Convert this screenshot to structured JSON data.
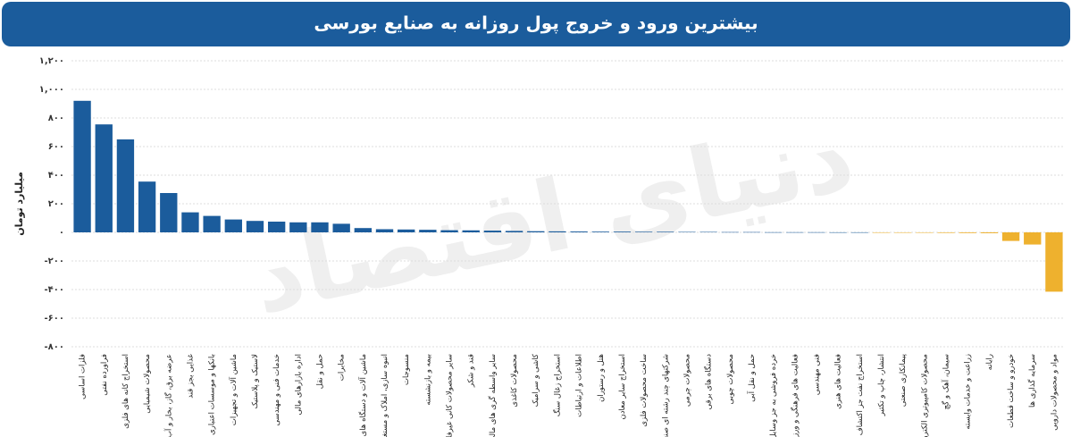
{
  "chart_data": {
    "type": "bar",
    "title": "بیشترین ورود و خروج پول روزانه به صنایع بورسی",
    "y_label": "میلیارد تومان",
    "watermark": "دنیای اقتصاد",
    "categories": [
      "فلزات اساسی",
      "فراورده نفتی",
      "استخراج کانه های فلزی",
      "محصولات شیمیایی",
      "عرضه برق، گاز، بخار و آب گرم",
      "غذایی بجز قند",
      "بانکها و موسسات اعتباری",
      "ماشین آلات و تجهیزات",
      "لاستیک و پلاستیک",
      "خدمات فنی و مهندسی",
      "اداره بازارهای مالی",
      "حمل و نقل",
      "مخابرات",
      "ماشین آلات و دستگاه های برقی",
      "انبوه سازی، املاک و مستغلات",
      "منسوجات",
      "بیمه و بازنشسته",
      "سایر محصولات کانی غیرفلزی",
      "قند و شکر",
      "سایر واسطه گری های مالی",
      "محصولات کاغذی",
      "کاشی و سرامیک",
      "استخراج زغال سنگ",
      "اطلاعات و ارتباطات",
      "هتل و رستوران",
      "استخراج سایر معادن",
      "ساخت محصولات فلزی",
      "شرکتهای چند رشته ای صنعتی",
      "محصولات چرمی",
      "دستگاه های برقی",
      "محصولات چوبی",
      "حمل و نقل آبی",
      "خرده فروشی به جز وسایل نقلیه",
      "فعالیت های فرهنگی و ورزشی",
      "فنی مهندسی",
      "فعالیت های هنری",
      "استخراج نفت جز اکتشاف",
      "انتشار، چاپ و تکثیر",
      "پیمانکاری صنعتی",
      "محصولات کامپیوتری الکترونیکی",
      "سیمان، آهک و گچ",
      "زراعت و خدمات وابسته",
      "رایانه",
      "خودرو و ساخت قطعات",
      "سرمایه گذاری ها",
      "مواد و محصولات دارویی"
    ],
    "values": [
      920,
      755,
      650,
      355,
      275,
      140,
      115,
      90,
      80,
      75,
      70,
      70,
      60,
      30,
      22,
      20,
      18,
      15,
      14,
      12,
      10,
      8,
      7,
      6,
      5,
      5,
      4,
      4,
      3,
      3,
      2,
      2,
      1,
      1,
      1,
      0.5,
      0.5,
      -1,
      -2,
      -3,
      -4,
      -5,
      -6,
      -60,
      -85,
      -415
    ],
    "colors": {
      "positive": "#1b5c9c",
      "negative": "#eeb12e"
    },
    "ylim": [
      -800,
      1200
    ],
    "yticks": [
      {
        "value": 1200,
        "label": "۱,۲۰۰"
      },
      {
        "value": 1000,
        "label": "۱,۰۰۰"
      },
      {
        "value": 800,
        "label": "۸۰۰"
      },
      {
        "value": 600,
        "label": "۶۰۰"
      },
      {
        "value": 400,
        "label": "۴۰۰"
      },
      {
        "value": 200,
        "label": "۲۰۰"
      },
      {
        "value": 0,
        "label": "۰"
      },
      {
        "value": -200,
        "label": "-۲۰۰"
      },
      {
        "value": -400,
        "label": "-۴۰۰"
      },
      {
        "value": -600,
        "label": "-۶۰۰"
      },
      {
        "value": -800,
        "label": "-۸۰۰"
      }
    ],
    "grid": true
  }
}
